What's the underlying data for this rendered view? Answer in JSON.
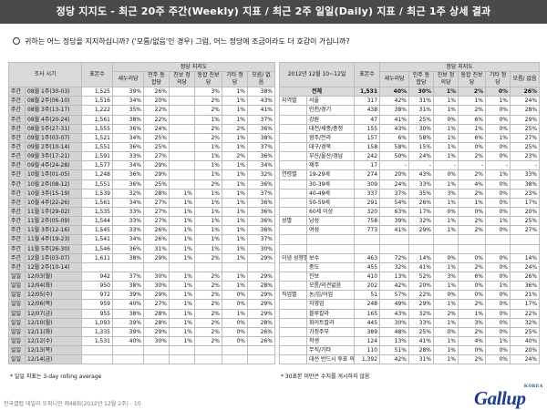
{
  "title": "정당 지지도 - 최근 20주 주간(Weekly) 지표 / 최근 2주 일일(Daily) 지표 / 최근 1주 상세 결과",
  "question": "귀하는 어느 정당을 지지하십니까? ('모름/없음'인 경우) 그럼, 어느 정당에 조금이라도 더 호감이 가십니까?",
  "left_table": {
    "header": {
      "col_period": "조사 시기",
      "col_n": "표본수",
      "group": "정당 지지도",
      "parties": [
        "새누리당",
        "민주\n통합당",
        "진보\n정의당",
        "통합\n진보당",
        "기타\n정당",
        "모름/\n없음"
      ]
    },
    "weekly": [
      {
        "type": "주간",
        "label": "08월 1주(30-03)",
        "n": "1,525",
        "vals": [
          "39%",
          "26%",
          "",
          "3%",
          "1%",
          "38%"
        ]
      },
      {
        "type": "주간",
        "label": "08월 2주(06-10)",
        "n": "1,516",
        "vals": [
          "34%",
          "20%",
          "",
          "2%",
          "1%",
          "43%"
        ]
      },
      {
        "type": "주간",
        "label": "08월 3주(13-17)",
        "n": "1,222",
        "vals": [
          "35%",
          "22%",
          "",
          "2%",
          "1%",
          "41%"
        ]
      },
      {
        "type": "주간",
        "label": "08월 4주(20-24)",
        "n": "1,561",
        "vals": [
          "38%",
          "22%",
          "",
          "1%",
          "1%",
          "37%"
        ]
      },
      {
        "type": "주간",
        "label": "08월 5주(27-31)",
        "n": "1,555",
        "vals": [
          "36%",
          "24%",
          "",
          "2%",
          "2%",
          "36%"
        ]
      },
      {
        "type": "주간",
        "label": "09월 1주(03-07)",
        "n": "1,521",
        "vals": [
          "34%",
          "25%",
          "",
          "2%",
          "1%",
          "38%"
        ]
      },
      {
        "type": "주간",
        "label": "09월 2주(10-14)",
        "n": "1,551",
        "vals": [
          "36%",
          "25%",
          "",
          "1%",
          "1%",
          "37%"
        ]
      },
      {
        "type": "주간",
        "label": "09월 3주(17-21)",
        "n": "1,591",
        "vals": [
          "33%",
          "27%",
          "",
          "1%",
          "2%",
          "36%"
        ]
      },
      {
        "type": "주간",
        "label": "09월 4주(24-28)",
        "n": "1,577",
        "vals": [
          "34%",
          "29%",
          "",
          "1%",
          "1%",
          "34%"
        ]
      },
      {
        "type": "주간",
        "label": "10월 1주(01-05)",
        "n": "1,248",
        "vals": [
          "36%",
          "29%",
          "",
          "1%",
          "1%",
          "32%"
        ]
      },
      {
        "type": "주간",
        "label": "10월 2주(08-12)",
        "n": "1,551",
        "vals": [
          "36%",
          "25%",
          "",
          "2%",
          "1%",
          "36%"
        ]
      },
      {
        "type": "주간",
        "label": "10월 3주(15-19)",
        "n": "1,539",
        "vals": [
          "32%",
          "28%",
          "1%",
          "1%",
          "1%",
          "37%"
        ]
      },
      {
        "type": "주간",
        "label": "10월 4주(22-26)",
        "n": "1,561",
        "vals": [
          "34%",
          "27%",
          "1%",
          "1%",
          "1%",
          "36%"
        ]
      },
      {
        "type": "주간",
        "label": "11월 1주(29-02)",
        "n": "1,535",
        "vals": [
          "33%",
          "27%",
          "1%",
          "1%",
          "1%",
          "36%"
        ]
      },
      {
        "type": "주간",
        "label": "11월 2주(05-09)",
        "n": "1,544",
        "vals": [
          "33%",
          "27%",
          "1%",
          "1%",
          "1%",
          "36%"
        ]
      },
      {
        "type": "주간",
        "label": "11월 3주(12-16)",
        "n": "1,545",
        "vals": [
          "33%",
          "26%",
          "1%",
          "1%",
          "1%",
          "36%"
        ]
      },
      {
        "type": "주간",
        "label": "11월 4주(19-23)",
        "n": "1,541",
        "vals": [
          "34%",
          "26%",
          "1%",
          "1%",
          "1%",
          "37%"
        ]
      },
      {
        "type": "주간",
        "label": "11월 5주(26-30)",
        "n": "1,546",
        "vals": [
          "36%",
          "31%",
          "1%",
          "1%",
          "1%",
          "30%"
        ]
      },
      {
        "type": "주간",
        "label": "12월 1주(03-07)",
        "n": "1,611",
        "vals": [
          "38%",
          "29%",
          "1%",
          "2%",
          "1%",
          "29%"
        ]
      },
      {
        "type": "주간",
        "label": "12월 2주(10-14)",
        "n": "",
        "vals": [
          "",
          "",
          "",
          "",
          "",
          ""
        ]
      }
    ],
    "daily": [
      {
        "type": "일일",
        "label": "12/03(월)",
        "n": "942",
        "vals": [
          "37%",
          "30%",
          "1%",
          "2%",
          "1%",
          "29%"
        ]
      },
      {
        "type": "일일",
        "label": "12/04(화)",
        "n": "950",
        "vals": [
          "38%",
          "30%",
          "1%",
          "2%",
          "1%",
          "28%"
        ]
      },
      {
        "type": "일일",
        "label": "12/05(수)",
        "n": "972",
        "vals": [
          "39%",
          "29%",
          "1%",
          "2%",
          "0%",
          "29%"
        ]
      },
      {
        "type": "일일",
        "label": "12/06(목)",
        "n": "959",
        "vals": [
          "40%",
          "27%",
          "1%",
          "2%",
          "0%",
          "29%"
        ]
      },
      {
        "type": "일일",
        "label": "12/07(금)",
        "n": "955",
        "vals": [
          "38%",
          "28%",
          "1%",
          "2%",
          "1%",
          "29%"
        ]
      },
      {
        "type": "일일",
        "label": "12/10(월)",
        "n": "1,093",
        "vals": [
          "39%",
          "28%",
          "1%",
          "2%",
          "0%",
          "28%"
        ]
      },
      {
        "type": "일일",
        "label": "12/11(화)",
        "n": "1,335",
        "vals": [
          "39%",
          "29%",
          "1%",
          "2%",
          "0%",
          "26%"
        ]
      },
      {
        "type": "일일",
        "label": "12/12(수)",
        "n": "1,531",
        "vals": [
          "40%",
          "30%",
          "1%",
          "2%",
          "0%",
          "26%"
        ]
      },
      {
        "type": "일일",
        "label": "12/13(목)",
        "n": "",
        "vals": [
          "",
          "",
          "",
          "",
          "",
          ""
        ]
      },
      {
        "type": "일일",
        "label": "12/14(금)",
        "n": "",
        "vals": [
          "",
          "",
          "",
          "",
          "",
          ""
        ]
      }
    ]
  },
  "right_table": {
    "header": {
      "period": "2012년 12월 10~12일",
      "col_n": "표본수",
      "group": "정당 지지도",
      "parties": [
        "새누리당",
        "민주\n통합당",
        "진보\n정의당",
        "통합\n진보당",
        "기타\n정당",
        "모름/\n없음"
      ]
    },
    "total": {
      "label": "전체",
      "n": "1,531",
      "vals": [
        "40%",
        "30%",
        "1%",
        "2%",
        "0%",
        "26%"
      ]
    },
    "rows": [
      {
        "group": "지역별",
        "label": "서울",
        "n": "317",
        "vals": [
          "42%",
          "31%",
          "1%",
          "1%",
          "1%",
          "24%"
        ]
      },
      {
        "group": "",
        "label": "인천/경기",
        "n": "438",
        "vals": [
          "38%",
          "31%",
          "1%",
          "2%",
          "0%",
          "28%"
        ]
      },
      {
        "group": "",
        "label": "강원",
        "n": "47",
        "vals": [
          "41%",
          "25%",
          "0%",
          "6%",
          "0%",
          "29%"
        ]
      },
      {
        "group": "",
        "label": "대전/세종/충청",
        "n": "155",
        "vals": [
          "43%",
          "30%",
          "1%",
          "1%",
          "0%",
          "25%"
        ]
      },
      {
        "group": "",
        "label": "광주/전라",
        "n": "157",
        "vals": [
          "6%",
          "58%",
          "1%",
          "6%",
          "1%",
          "27%"
        ]
      },
      {
        "group": "",
        "label": "대구/경북",
        "n": "158",
        "vals": [
          "58%",
          "15%",
          "1%",
          "0%",
          "0%",
          "25%"
        ]
      },
      {
        "group": "",
        "label": "부산/울산/경남",
        "n": "242",
        "vals": [
          "50%",
          "24%",
          "1%",
          "2%",
          "0%",
          "23%"
        ]
      },
      {
        "group": "",
        "label": "제주",
        "n": "17",
        "vals": [
          "-",
          "-",
          "-",
          "-",
          "-",
          "-"
        ]
      },
      {
        "group": "연령별",
        "label": "19-29세",
        "n": "274",
        "vals": [
          "20%",
          "43%",
          "0%",
          "2%",
          "1%",
          "33%"
        ]
      },
      {
        "group": "",
        "label": "30-39세",
        "n": "309",
        "vals": [
          "24%",
          "33%",
          "1%",
          "4%",
          "0%",
          "38%"
        ]
      },
      {
        "group": "",
        "label": "40-49세",
        "n": "337",
        "vals": [
          "37%",
          "35%",
          "3%",
          "2%",
          "0%",
          "23%"
        ]
      },
      {
        "group": "",
        "label": "50-59세",
        "n": "291",
        "vals": [
          "54%",
          "26%",
          "1%",
          "1%",
          "0%",
          "17%"
        ]
      },
      {
        "group": "",
        "label": "60세 이상",
        "n": "320",
        "vals": [
          "63%",
          "17%",
          "0%",
          "0%",
          "0%",
          "20%"
        ]
      },
      {
        "group": "성별",
        "label": "남성",
        "n": "758",
        "vals": [
          "39%",
          "32%",
          "1%",
          "2%",
          "1%",
          "25%"
        ]
      },
      {
        "group": "",
        "label": "여성",
        "n": "773",
        "vals": [
          "41%",
          "29%",
          "1%",
          "2%",
          "0%",
          "27%"
        ]
      },
      {
        "group": "",
        "label": "",
        "n": "",
        "vals": [
          "",
          "",
          "",
          "",
          "",
          ""
        ]
      },
      {
        "group": "",
        "label": "",
        "n": "",
        "vals": [
          "",
          "",
          "",
          "",
          "",
          ""
        ]
      },
      {
        "group": "이념 성향별",
        "label": "보수",
        "n": "463",
        "vals": [
          "72%",
          "14%",
          "0%",
          "0%",
          "0%",
          "14%"
        ]
      },
      {
        "group": "",
        "label": "중도",
        "n": "455",
        "vals": [
          "32%",
          "41%",
          "1%",
          "2%",
          "0%",
          "24%"
        ]
      },
      {
        "group": "",
        "label": "진보",
        "n": "410",
        "vals": [
          "13%",
          "52%",
          "3%",
          "6%",
          "0%",
          "26%"
        ]
      },
      {
        "group": "",
        "label": "모름/의견없음",
        "n": "202",
        "vals": [
          "42%",
          "20%",
          "1%",
          "0%",
          "1%",
          "36%"
        ]
      },
      {
        "group": "직업별",
        "label": "농/임/어업",
        "n": "51",
        "vals": [
          "57%",
          "22%",
          "0%",
          "0%",
          "0%",
          "21%"
        ]
      },
      {
        "group": "",
        "label": "자영업",
        "n": "248",
        "vals": [
          "49%",
          "29%",
          "1%",
          "2%",
          "0%",
          "17%"
        ]
      },
      {
        "group": "",
        "label": "블루칼라",
        "n": "165",
        "vals": [
          "43%",
          "32%",
          "2%",
          "1%",
          "0%",
          "22%"
        ]
      },
      {
        "group": "",
        "label": "화이트칼라",
        "n": "445",
        "vals": [
          "30%",
          "33%",
          "1%",
          "3%",
          "0%",
          "32%"
        ]
      },
      {
        "group": "",
        "label": "가정주부",
        "n": "389",
        "vals": [
          "48%",
          "25%",
          "0%",
          "2%",
          "0%",
          "25%"
        ]
      },
      {
        "group": "",
        "label": "학생",
        "n": "124",
        "vals": [
          "13%",
          "41%",
          "1%",
          "4%",
          "1%",
          "40%"
        ]
      },
      {
        "group": "",
        "label": "무직/기타",
        "n": "110",
        "vals": [
          "51%",
          "28%",
          "1%",
          "0%",
          "0%",
          "20%"
        ]
      },
      {
        "group": "",
        "label": "대선 반드시 투표 의향자",
        "n": "1,392",
        "vals": [
          "42%",
          "31%",
          "1%",
          "2%",
          "0%",
          "24%"
        ]
      }
    ]
  },
  "footnote": "* 일일 지표는 3-day rolling average",
  "right_note": "* 30표본 미만은 수치를 게시하지 않음",
  "source": "한국갤럽 데일리 오피니언 제48회(2012년 12월 2주) - 10",
  "logo": {
    "text": "Gallup",
    "sub": "KOREA",
    "color": "#1a3c8f"
  },
  "colors": {
    "title_bar": "#4a4a4a",
    "header_bg": "#d9d9d9",
    "label_bg": "#d4d4d4",
    "logo": "#1a3c8f"
  },
  "chart_data": [
    {
      "type": "table",
      "title": "정당 지지도 - 최근 20주 주간(Weekly) 지표",
      "columns": [
        "표본수",
        "새누리당",
        "민주통합당",
        "진보정의당",
        "통합진보당",
        "기타정당",
        "모름/없음"
      ],
      "rows": [
        "08월 1주(30-03)",
        "08월 2주(06-10)",
        "08월 3주(13-17)",
        "08월 4주(20-24)",
        "08월 5주(27-31)",
        "09월 1주(03-07)",
        "09월 2주(10-14)",
        "09월 3주(17-21)",
        "09월 4주(24-28)",
        "10월 1주(01-05)",
        "10월 2주(08-12)",
        "10월 3주(15-19)",
        "10월 4주(22-26)",
        "11월 1주(29-02)",
        "11월 2주(05-09)",
        "11월 3주(12-16)",
        "11월 4주(19-23)",
        "11월 5주(26-30)",
        "12월 1주(03-07)",
        "12월 2주(10-14)"
      ],
      "series": [
        {
          "name": "새누리당",
          "values": [
            39,
            34,
            35,
            38,
            36,
            34,
            36,
            33,
            34,
            36,
            36,
            32,
            34,
            33,
            33,
            33,
            34,
            36,
            38,
            null
          ]
        },
        {
          "name": "민주통합당",
          "values": [
            26,
            20,
            22,
            22,
            24,
            25,
            25,
            27,
            29,
            29,
            25,
            28,
            27,
            27,
            27,
            26,
            26,
            31,
            29,
            null
          ]
        },
        {
          "name": "모름/없음",
          "values": [
            38,
            43,
            41,
            37,
            36,
            38,
            37,
            36,
            34,
            32,
            36,
            37,
            36,
            36,
            36,
            36,
            37,
            30,
            29,
            null
          ]
        }
      ]
    }
  ]
}
